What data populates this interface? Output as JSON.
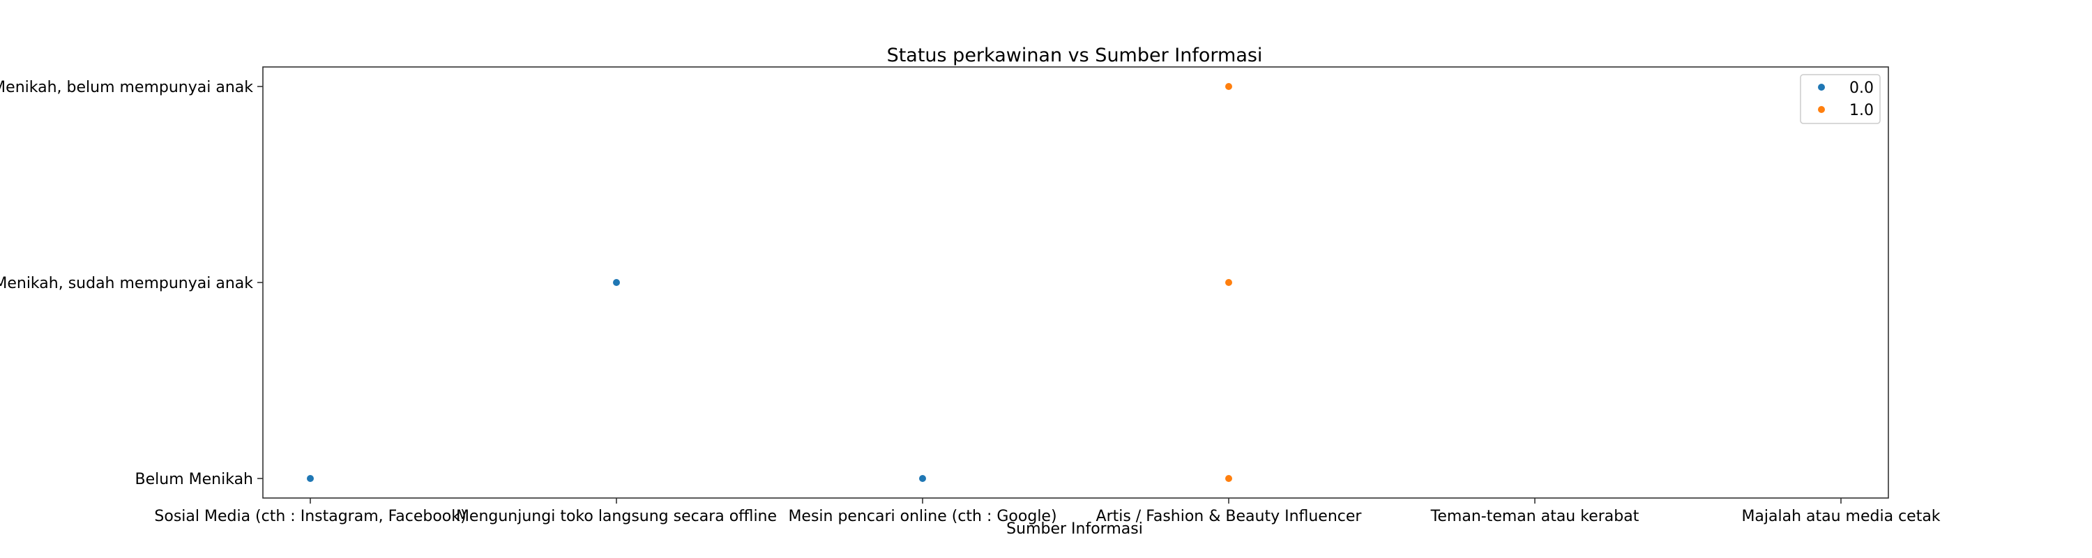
{
  "chart_data": {
    "type": "scatter",
    "title": "Status perkawinan vs Sumber Informasi",
    "xlabel": "Sumber Informasi",
    "ylabel": "",
    "x_categories": [
      "Sosial Media (cth : Instagram, Facebook)",
      "Mengunjungi toko langsung secara offline",
      "Mesin pencari online (cth : Google)",
      "Artis / Fashion & Beauty Influencer",
      "Teman-teman atau kerabat",
      "Majalah atau media cetak"
    ],
    "y_categories": [
      "Belum Menikah",
      "Menikah, sudah mempunyai anak",
      "Menikah, belum mempunyai anak"
    ],
    "grid": false,
    "legend_position": "top-right",
    "series": [
      {
        "name": "0.0",
        "color": "#1f77b4",
        "points": [
          {
            "x": "Sosial Media (cth : Instagram, Facebook)",
            "y": "Belum Menikah"
          },
          {
            "x": "Mengunjungi toko langsung secara offline",
            "y": "Menikah, sudah mempunyai anak"
          },
          {
            "x": "Mesin pencari online (cth : Google)",
            "y": "Belum Menikah"
          }
        ]
      },
      {
        "name": "1.0",
        "color": "#ff7f0e",
        "points": [
          {
            "x": "Artis / Fashion & Beauty Influencer",
            "y": "Menikah, belum mempunyai anak"
          },
          {
            "x": "Artis / Fashion & Beauty Influencer",
            "y": "Menikah, sudah mempunyai anak"
          },
          {
            "x": "Artis / Fashion & Beauty Influencer",
            "y": "Belum Menikah"
          }
        ]
      }
    ]
  }
}
